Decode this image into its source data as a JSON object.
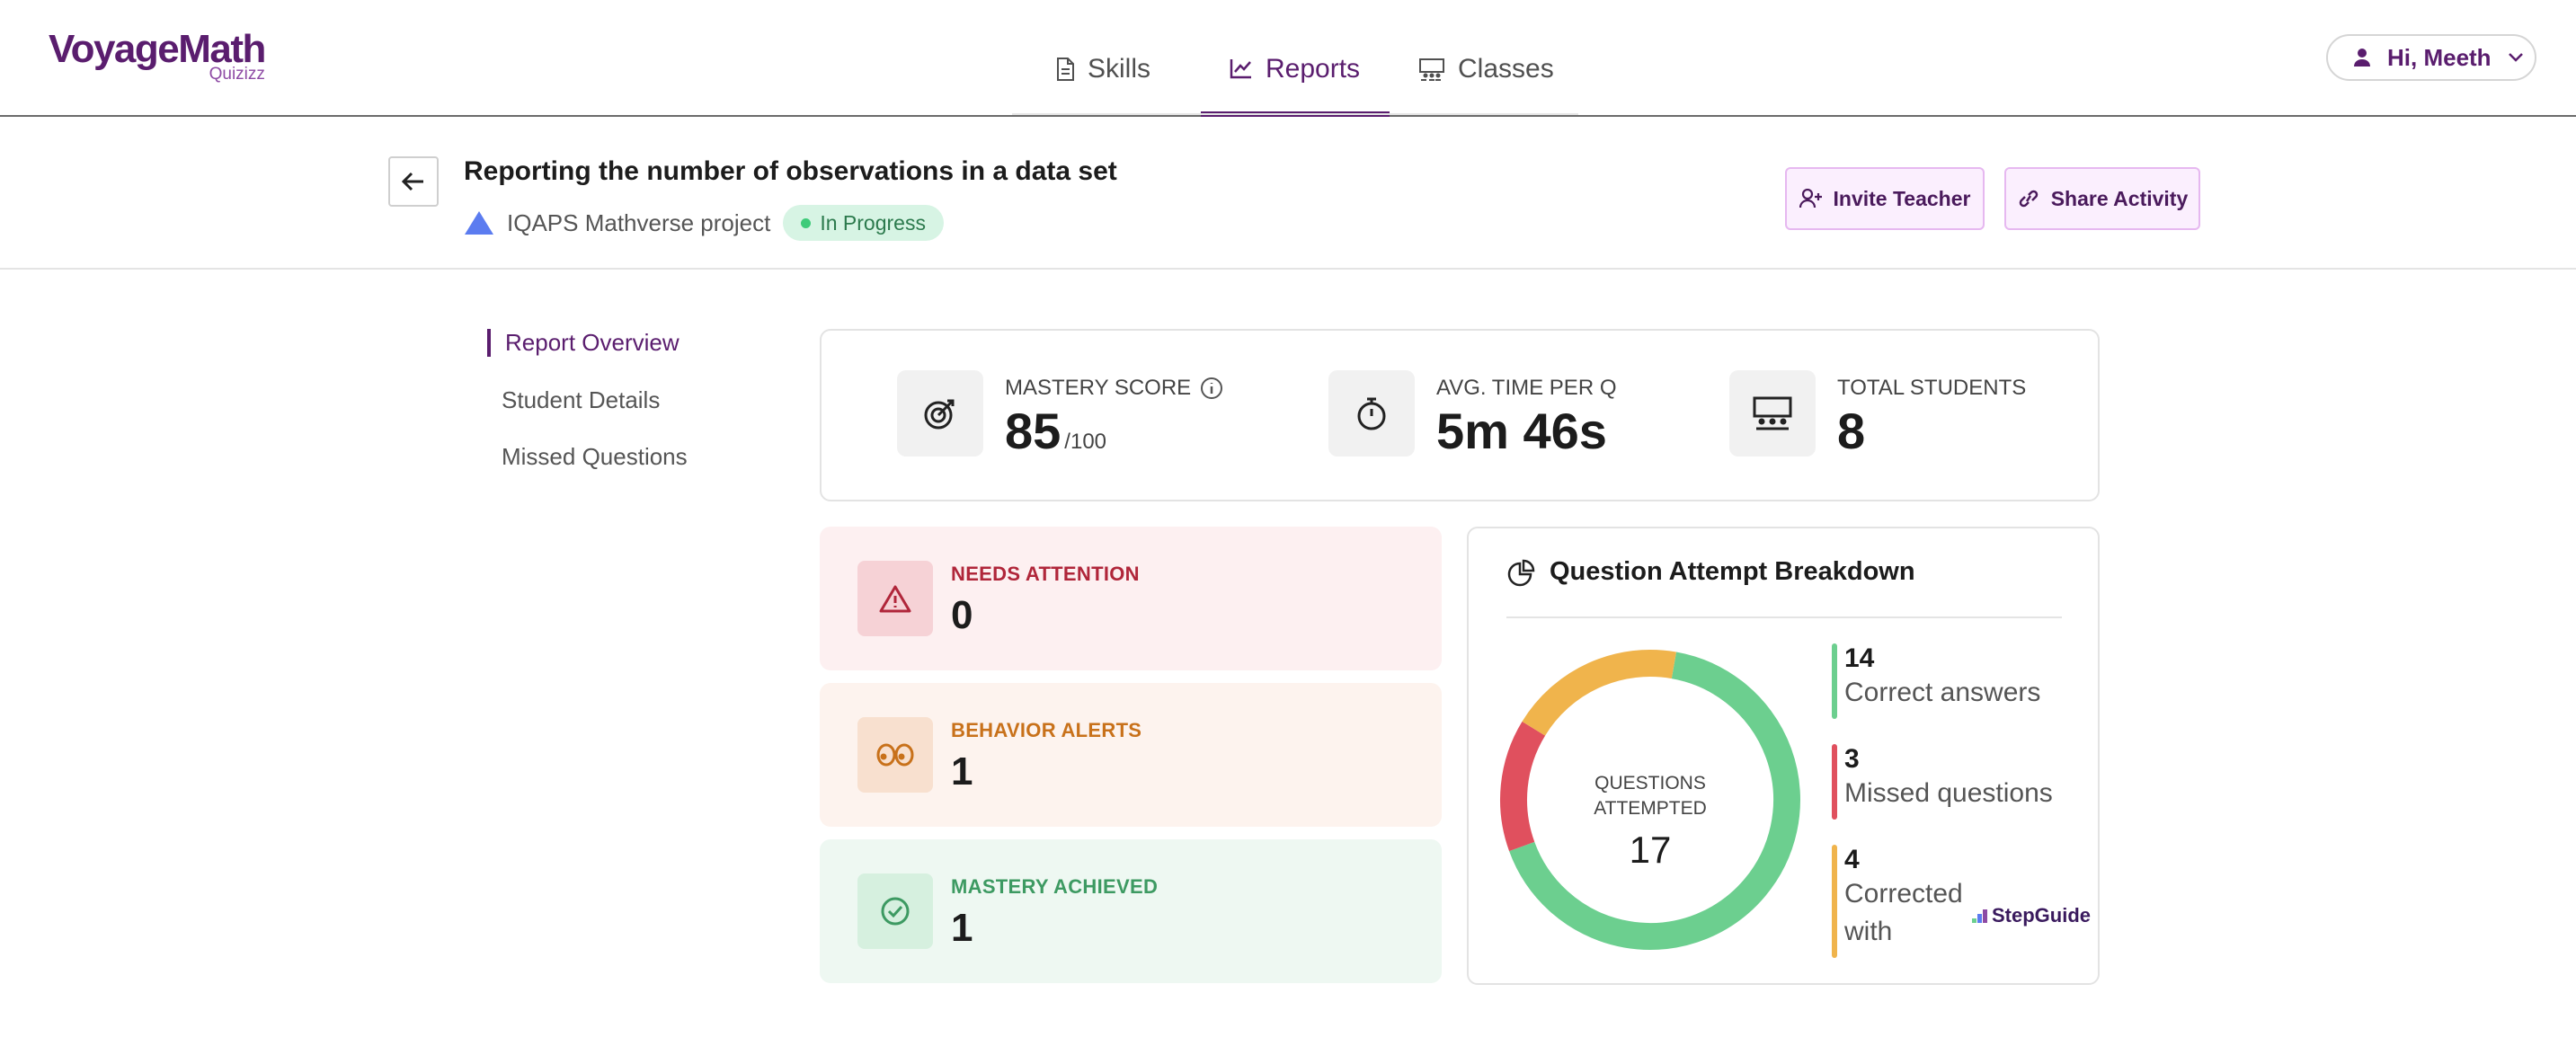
{
  "app": {
    "logo_main": "VoyageMath",
    "logo_sub": "Quizizz",
    "user_greeting": "Hi, Meeth",
    "accent_color": "#5a1d6e"
  },
  "nav": {
    "tabs": [
      {
        "label": "Skills",
        "icon": "document-icon",
        "active": false
      },
      {
        "label": "Reports",
        "icon": "chart-icon",
        "active": true
      },
      {
        "label": "Classes",
        "icon": "classroom-icon",
        "active": false
      }
    ]
  },
  "header": {
    "title": "Reporting the number of observations in a data set",
    "project": "IQAPS Mathverse project",
    "status": "In Progress",
    "invite_label": "Invite Teacher",
    "share_label": "Share Activity"
  },
  "sidebar": {
    "items": [
      {
        "label": "Report Overview",
        "active": true
      },
      {
        "label": "Student Details",
        "active": false
      },
      {
        "label": "Missed Questions",
        "active": false
      }
    ]
  },
  "stats": {
    "mastery_label": "MASTERY SCORE",
    "mastery_value": "85",
    "mastery_suffix": "/100",
    "time_label": "AVG. TIME PER Q",
    "time_value": "5m 46s",
    "students_label": "TOTAL STUDENTS",
    "students_value": "8"
  },
  "tiles": {
    "needs_attention": {
      "label": "NEEDS ATTENTION",
      "value": "0",
      "color": "#b0263a",
      "bg": "#fdf0f1"
    },
    "behavior_alerts": {
      "label": "BEHAVIOR ALERTS",
      "value": "1",
      "color": "#c8711a",
      "bg": "#fdf3ee"
    },
    "mastery_achieved": {
      "label": "MASTERY ACHIEVED",
      "value": "1",
      "color": "#3d9a62",
      "bg": "#eef8f2"
    }
  },
  "breakdown": {
    "title": "Question Attempt Breakdown",
    "center_label": "QUESTIONS ATTEMPTED",
    "total": "17",
    "legend": [
      {
        "count": "14",
        "text": "Correct answers",
        "color": "#6ccf8f"
      },
      {
        "count": "3",
        "text": "Missed questions",
        "color": "#e0505e"
      },
      {
        "count": "4",
        "text": "Corrected with",
        "color": "#f0b44c"
      }
    ],
    "stepguide_label": "StepGuide"
  },
  "chart_data": {
    "type": "pie",
    "categories": [
      "Correct answers",
      "Missed questions",
      "Corrected with"
    ],
    "values": [
      14,
      3,
      4
    ],
    "colors": [
      "#6ccf8f",
      "#e0505e",
      "#f0b44c"
    ],
    "total": 17
  }
}
